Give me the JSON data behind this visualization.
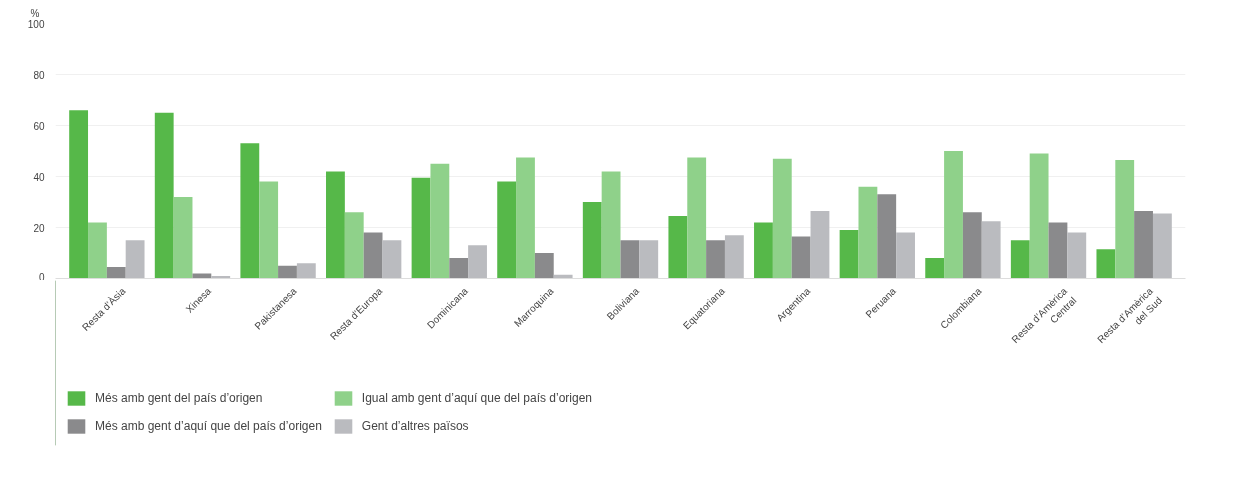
{
  "chart_data": {
    "type": "bar",
    "ylabel": "%",
    "categories": [
      "Resta d’Àsia",
      "Xinesa",
      "Pakistanesa",
      "Resta d’Europa",
      "Dominicana",
      "Marroquina",
      "Boliviana",
      "Equatoriana",
      "Argentina",
      "Peruana",
      "Colombiana",
      "Resta d’Amèrica\nCentral",
      "Resta d’Amèrica\ndel Sud"
    ],
    "series": [
      {
        "name": "Més amb gent del país d’origen",
        "color": "#56b849",
        "values": [
          66,
          65,
          53,
          42,
          39.5,
          38,
          30,
          24.5,
          22,
          19,
          8,
          15,
          11.5
        ]
      },
      {
        "name": "Igual amb gent d’aquí que del país d’origen",
        "color": "#8fd18a",
        "values": [
          22,
          32,
          38,
          26,
          45,
          47.5,
          42,
          47.5,
          47,
          36,
          50,
          49,
          46.5
        ]
      },
      {
        "name": "Més amb gent d’aquí que del país d’origen",
        "color": "#8a8a8c",
        "values": [
          4.5,
          2,
          5,
          18,
          8,
          10,
          15,
          15,
          16.5,
          33,
          26,
          22,
          26.5
        ]
      },
      {
        "name": "Gent d’altres països",
        "color": "#babbbf",
        "values": [
          15,
          1,
          6,
          15,
          13,
          1.5,
          15,
          17,
          26.5,
          18,
          22.5,
          18,
          25.5
        ]
      }
    ],
    "ylim": [
      0,
      100
    ],
    "yticks": [
      0,
      20,
      40,
      60,
      80,
      100
    ],
    "grid": "y",
    "legend": "bottom"
  }
}
